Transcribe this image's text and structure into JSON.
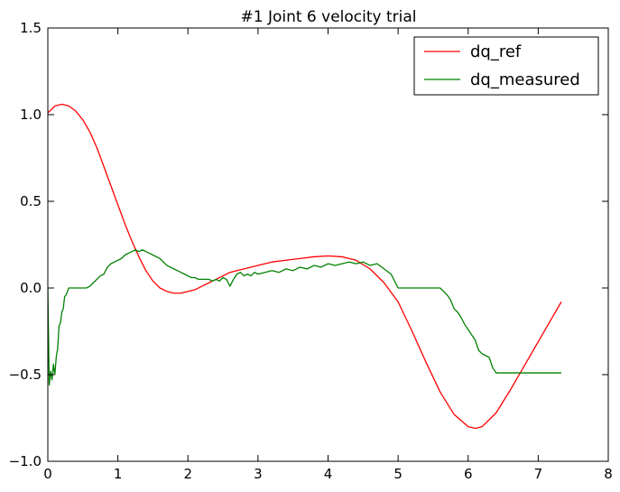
{
  "chart_data": {
    "type": "line",
    "title": "#1 Joint 6 velocity trial",
    "xlabel": "",
    "ylabel": "",
    "xlim": [
      0,
      8
    ],
    "ylim": [
      -1.0,
      1.5
    ],
    "xticks": [
      0,
      1,
      2,
      3,
      4,
      5,
      6,
      7,
      8
    ],
    "xtick_labels": [
      "0",
      "1",
      "2",
      "3",
      "4",
      "5",
      "6",
      "7",
      "8"
    ],
    "yticks": [
      -1.0,
      -0.5,
      0.0,
      0.5,
      1.0,
      1.5
    ],
    "ytick_labels": [
      "−1.0",
      "−0.5",
      "0.0",
      "0.5",
      "1.0",
      "1.5"
    ],
    "grid": false,
    "legend_position": "top-right",
    "series": [
      {
        "name": "dq_ref",
        "color": "#ff0000",
        "x": [
          0.0,
          0.1,
          0.2,
          0.3,
          0.4,
          0.5,
          0.6,
          0.7,
          0.8,
          0.9,
          1.0,
          1.1,
          1.2,
          1.3,
          1.4,
          1.5,
          1.6,
          1.7,
          1.8,
          1.9,
          2.0,
          2.1,
          2.2,
          2.3,
          2.4,
          2.5,
          2.6,
          2.7,
          2.8,
          2.9,
          3.0,
          3.2,
          3.4,
          3.6,
          3.8,
          4.0,
          4.2,
          4.4,
          4.6,
          4.8,
          5.0,
          5.2,
          5.4,
          5.6,
          5.8,
          6.0,
          6.1,
          6.2,
          6.4,
          6.6,
          6.8,
          7.0,
          7.2,
          7.33
        ],
        "y": [
          1.01,
          1.05,
          1.06,
          1.05,
          1.02,
          0.97,
          0.9,
          0.81,
          0.7,
          0.59,
          0.48,
          0.37,
          0.27,
          0.18,
          0.1,
          0.04,
          0.0,
          -0.02,
          -0.03,
          -0.03,
          -0.02,
          -0.01,
          0.01,
          0.03,
          0.05,
          0.07,
          0.09,
          0.1,
          0.11,
          0.12,
          0.13,
          0.15,
          0.16,
          0.17,
          0.18,
          0.185,
          0.18,
          0.16,
          0.11,
          0.03,
          -0.08,
          -0.25,
          -0.43,
          -0.6,
          -0.73,
          -0.8,
          -0.81,
          -0.8,
          -0.72,
          -0.59,
          -0.45,
          -0.31,
          -0.17,
          -0.08
        ]
      },
      {
        "name": "dq_measured",
        "color": "#008000",
        "x": [
          0.0,
          0.02,
          0.04,
          0.06,
          0.08,
          0.1,
          0.12,
          0.14,
          0.16,
          0.18,
          0.2,
          0.22,
          0.24,
          0.26,
          0.28,
          0.3,
          0.35,
          0.4,
          0.45,
          0.5,
          0.55,
          0.6,
          0.65,
          0.7,
          0.75,
          0.8,
          0.85,
          0.9,
          0.95,
          1.0,
          1.05,
          1.1,
          1.15,
          1.2,
          1.25,
          1.3,
          1.35,
          1.4,
          1.45,
          1.5,
          1.55,
          1.6,
          1.65,
          1.7,
          1.75,
          1.8,
          1.85,
          1.9,
          1.95,
          2.0,
          2.05,
          2.1,
          2.15,
          2.2,
          2.25,
          2.3,
          2.35,
          2.4,
          2.45,
          2.5,
          2.55,
          2.6,
          2.65,
          2.7,
          2.75,
          2.8,
          2.85,
          2.9,
          2.95,
          3.0,
          3.1,
          3.2,
          3.3,
          3.4,
          3.5,
          3.6,
          3.7,
          3.8,
          3.9,
          4.0,
          4.1,
          4.2,
          4.3,
          4.4,
          4.5,
          4.6,
          4.7,
          4.8,
          4.9,
          5.0,
          5.2,
          5.4,
          5.5,
          5.55,
          5.6,
          5.65,
          5.7,
          5.75,
          5.8,
          5.85,
          5.9,
          5.95,
          6.0,
          6.05,
          6.1,
          6.15,
          6.2,
          6.25,
          6.3,
          6.35,
          6.4,
          6.6,
          6.8,
          7.0,
          7.2,
          7.33
        ],
        "y": [
          0.0,
          -0.56,
          -0.48,
          -0.53,
          -0.44,
          -0.5,
          -0.4,
          -0.35,
          -0.22,
          -0.2,
          -0.14,
          -0.12,
          -0.05,
          -0.04,
          -0.02,
          0.0,
          0.0,
          0.0,
          0.0,
          0.0,
          0.0,
          0.01,
          0.03,
          0.05,
          0.07,
          0.08,
          0.12,
          0.14,
          0.15,
          0.16,
          0.17,
          0.19,
          0.2,
          0.21,
          0.22,
          0.21,
          0.22,
          0.21,
          0.2,
          0.19,
          0.18,
          0.17,
          0.15,
          0.13,
          0.12,
          0.11,
          0.1,
          0.09,
          0.08,
          0.07,
          0.06,
          0.06,
          0.05,
          0.05,
          0.05,
          0.05,
          0.04,
          0.05,
          0.04,
          0.06,
          0.05,
          0.01,
          0.05,
          0.08,
          0.09,
          0.07,
          0.08,
          0.07,
          0.09,
          0.08,
          0.09,
          0.1,
          0.09,
          0.11,
          0.1,
          0.12,
          0.11,
          0.13,
          0.12,
          0.14,
          0.13,
          0.14,
          0.15,
          0.14,
          0.15,
          0.13,
          0.14,
          0.11,
          0.08,
          0.0,
          0.0,
          0.0,
          0.0,
          0.0,
          0.0,
          -0.02,
          -0.04,
          -0.07,
          -0.12,
          -0.14,
          -0.17,
          -0.21,
          -0.24,
          -0.27,
          -0.3,
          -0.36,
          -0.38,
          -0.39,
          -0.4,
          -0.46,
          -0.49,
          -0.49,
          -0.49,
          -0.49,
          -0.49,
          -0.49
        ]
      }
    ]
  }
}
